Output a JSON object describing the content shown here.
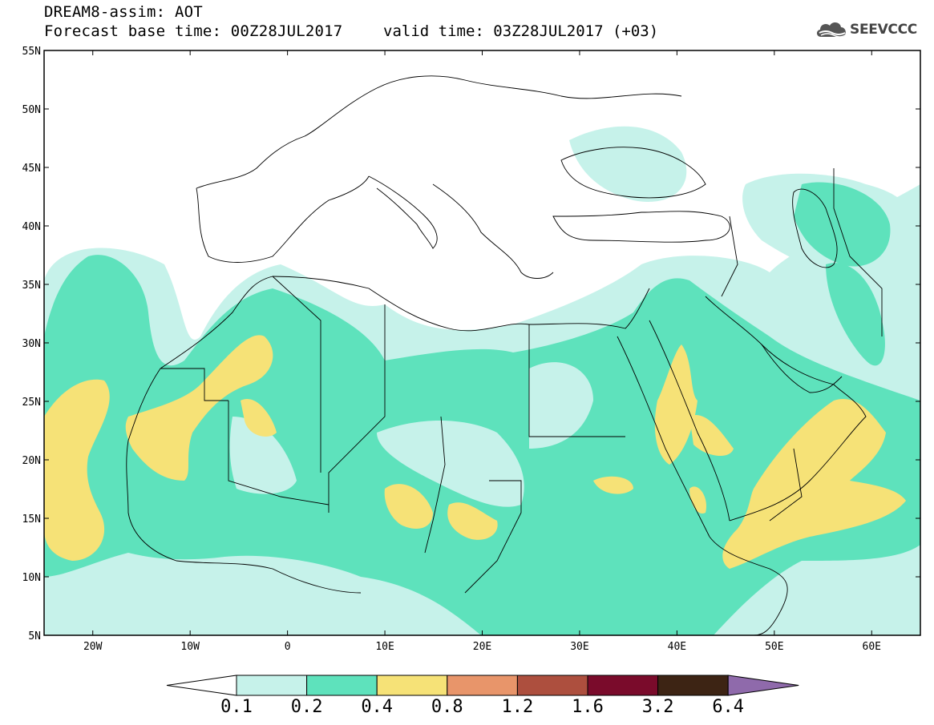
{
  "header": {
    "title": "DREAM8-assim: AOT",
    "base_time": "Forecast base time: 00Z28JUL2017",
    "valid_time": "valid time: 03Z28JUL2017 (+03)",
    "logo_text": "SEEVCCC"
  },
  "map": {
    "lon_range": [
      -25,
      65
    ],
    "lat_range": [
      5,
      55
    ],
    "lon_ticks": [
      {
        "value": -20,
        "label": "20W"
      },
      {
        "value": -10,
        "label": "10W"
      },
      {
        "value": 0,
        "label": "0"
      },
      {
        "value": 10,
        "label": "10E"
      },
      {
        "value": 20,
        "label": "20E"
      },
      {
        "value": 30,
        "label": "30E"
      },
      {
        "value": 40,
        "label": "40E"
      },
      {
        "value": 50,
        "label": "50E"
      },
      {
        "value": 60,
        "label": "60E"
      }
    ],
    "lat_ticks": [
      {
        "value": 55,
        "label": "55N"
      },
      {
        "value": 50,
        "label": "50N"
      },
      {
        "value": 45,
        "label": "45N"
      },
      {
        "value": 40,
        "label": "40N"
      },
      {
        "value": 35,
        "label": "35N"
      },
      {
        "value": 30,
        "label": "30N"
      },
      {
        "value": 25,
        "label": "25N"
      },
      {
        "value": 20,
        "label": "20N"
      },
      {
        "value": 15,
        "label": "15N"
      },
      {
        "value": 10,
        "label": "10N"
      },
      {
        "value": 5,
        "label": "5N"
      }
    ]
  },
  "colorbar": {
    "levels": [
      "0.1",
      "0.2",
      "0.4",
      "0.8",
      "1.2",
      "1.6",
      "3.2",
      "6.4"
    ],
    "colors": [
      "#ffffff",
      "#c6f2ea",
      "#5ee2bc",
      "#f6e277",
      "#e8956a",
      "#ad4f3e",
      "#7a0b2b",
      "#3d2414",
      "#8f6aab"
    ]
  }
}
